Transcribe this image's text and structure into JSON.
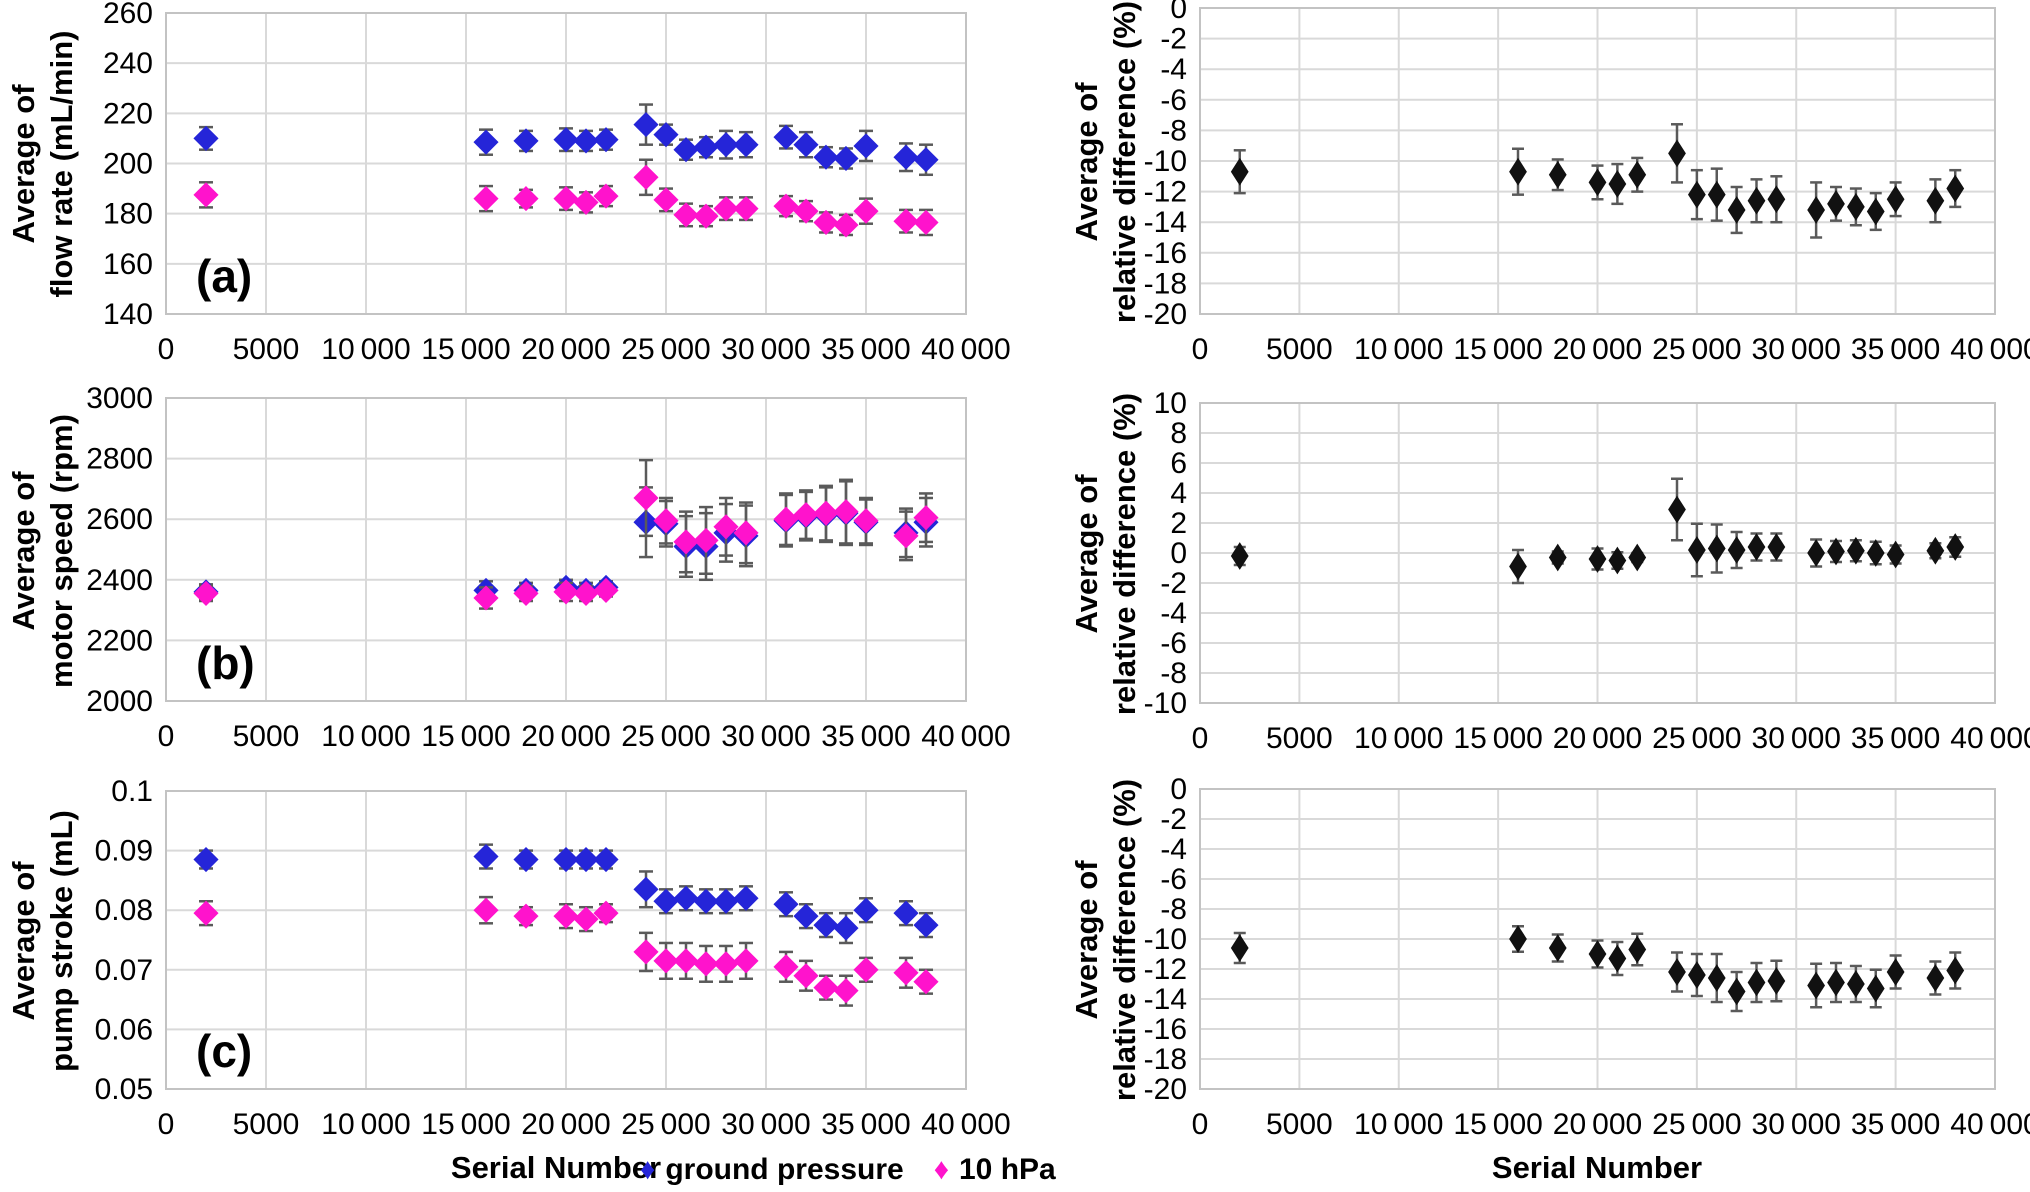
{
  "figure": {
    "x_axis_title": "Serial Number",
    "xticks": [
      0,
      5000,
      10000,
      15000,
      20000,
      25000,
      30000,
      35000,
      40000
    ],
    "xtick_labels": [
      "0",
      "5000",
      "10 000",
      "15 000",
      "20 000",
      "25 000",
      "30 000",
      "35 000",
      "40 000"
    ],
    "colors": {
      "ground_pressure": "#2525d8",
      "ten_hpa": "#ff13cc",
      "relative_diff": "#111111",
      "error_bar": "#5a5a5a",
      "gridline": "#d9d9d9",
      "plot_border": "#c3c3c3"
    }
  },
  "legend": {
    "glyph": "♦",
    "items": [
      {
        "label": "ground pressure",
        "color": "#2525d8"
      },
      {
        "label": "10 hPa",
        "color": "#ff13cc"
      }
    ]
  },
  "chart_data": [
    {
      "id": "flow-rate",
      "type": "scatter",
      "panel_label": "(a)",
      "ylabel_lines": [
        "Average of",
        "flow rate (mL/min)"
      ],
      "xlabel": "Serial Number",
      "xlim": [
        0,
        40000
      ],
      "ylim": [
        140,
        260
      ],
      "ytick_labels": [
        "260",
        "240",
        "220",
        "200",
        "180",
        "160",
        "140"
      ],
      "grid": true,
      "x": [
        2000,
        16000,
        18000,
        20000,
        21000,
        22000,
        24000,
        25000,
        26000,
        27000,
        28000,
        29000,
        31000,
        32000,
        33000,
        34000,
        35000,
        37000,
        38000
      ],
      "series": [
        {
          "name": "ground pressure",
          "color": "#2525d8",
          "values": [
            210,
            208.5,
            209,
            209.5,
            209,
            209.5,
            215.5,
            211.5,
            205.5,
            206.5,
            207.5,
            207.5,
            210.5,
            207.5,
            202.5,
            202,
            207,
            202.5,
            201.5
          ],
          "errors": [
            4.5,
            5,
            4,
            4.5,
            4,
            4,
            8,
            4,
            4,
            4,
            5.5,
            5,
            4.5,
            5,
            4,
            4,
            6,
            5.5,
            6
          ]
        },
        {
          "name": "10 hPa",
          "color": "#ff13cc",
          "values": [
            187.5,
            186,
            186,
            186,
            184.5,
            187,
            194.5,
            185.5,
            179.5,
            179,
            182,
            182,
            183,
            181,
            176.5,
            175.5,
            181,
            177,
            176.5
          ],
          "errors": [
            5,
            5,
            3.5,
            4.5,
            4,
            4,
            7,
            4.5,
            4.5,
            4,
            4.5,
            4.5,
            4,
            4,
            4,
            4,
            5,
            4.5,
            5
          ]
        }
      ]
    },
    {
      "id": "motor-speed",
      "type": "scatter",
      "panel_label": "(b)",
      "ylabel_lines": [
        "Average of",
        "motor speed (rpm)"
      ],
      "xlabel": "Serial Number",
      "xlim": [
        0,
        40000
      ],
      "ylim": [
        2000,
        3000
      ],
      "ytick_labels": [
        "3000",
        "2800",
        "2600",
        "2400",
        "2200",
        "2000"
      ],
      "grid": true,
      "x": [
        2000,
        16000,
        18000,
        20000,
        21000,
        22000,
        24000,
        25000,
        26000,
        27000,
        28000,
        29000,
        31000,
        32000,
        33000,
        34000,
        35000,
        37000,
        38000
      ],
      "series": [
        {
          "name": "ground pressure",
          "color": "#2525d8",
          "values": [
            2360,
            2365,
            2365,
            2375,
            2365,
            2375,
            2590,
            2585,
            2510,
            2510,
            2555,
            2545,
            2595,
            2610,
            2615,
            2620,
            2590,
            2555,
            2590
          ],
          "errors": [
            25,
            30,
            25,
            25,
            25,
            20,
            115,
            75,
            100,
            110,
            95,
            100,
            85,
            80,
            90,
            105,
            75,
            80,
            80
          ]
        },
        {
          "name": "10 hPa",
          "color": "#ff13cc",
          "values": [
            2355,
            2340,
            2355,
            2360,
            2355,
            2365,
            2670,
            2595,
            2525,
            2530,
            2575,
            2555,
            2600,
            2615,
            2620,
            2625,
            2595,
            2545,
            2605
          ],
          "errors": [
            25,
            35,
            25,
            30,
            25,
            20,
            125,
            75,
            100,
            110,
            95,
            100,
            85,
            80,
            90,
            105,
            75,
            80,
            80
          ]
        }
      ]
    },
    {
      "id": "pump-stroke",
      "type": "scatter",
      "panel_label": "(c)",
      "ylabel_lines": [
        "Average of",
        "pump stroke (mL)"
      ],
      "xlabel": "Serial Number",
      "xlim": [
        0,
        40000
      ],
      "ylim": [
        0.05,
        0.1
      ],
      "ytick_labels": [
        "0.1",
        "0.09",
        "0.08",
        "0.07",
        "0.06",
        "0.05"
      ],
      "grid": true,
      "x": [
        2000,
        16000,
        18000,
        20000,
        21000,
        22000,
        24000,
        25000,
        26000,
        27000,
        28000,
        29000,
        31000,
        32000,
        33000,
        34000,
        35000,
        37000,
        38000
      ],
      "series": [
        {
          "name": "ground pressure",
          "color": "#2525d8",
          "values": [
            0.0885,
            0.089,
            0.0885,
            0.0885,
            0.0885,
            0.0885,
            0.0835,
            0.0815,
            0.082,
            0.0815,
            0.0815,
            0.082,
            0.081,
            0.079,
            0.0775,
            0.077,
            0.08,
            0.0795,
            0.0775
          ],
          "errors": [
            0.0015,
            0.002,
            0.0015,
            0.0015,
            0.0015,
            0.0015,
            0.003,
            0.002,
            0.002,
            0.002,
            0.002,
            0.002,
            0.002,
            0.002,
            0.002,
            0.0025,
            0.002,
            0.002,
            0.002
          ]
        },
        {
          "name": "10 hPa",
          "color": "#ff13cc",
          "values": [
            0.0795,
            0.08,
            0.079,
            0.079,
            0.0785,
            0.0795,
            0.073,
            0.0715,
            0.0715,
            0.071,
            0.071,
            0.0715,
            0.0705,
            0.069,
            0.067,
            0.0665,
            0.07,
            0.0695,
            0.068
          ],
          "errors": [
            0.002,
            0.0022,
            0.0015,
            0.002,
            0.002,
            0.0015,
            0.0032,
            0.003,
            0.003,
            0.003,
            0.003,
            0.003,
            0.0025,
            0.0025,
            0.002,
            0.0025,
            0.002,
            0.0025,
            0.002
          ]
        }
      ]
    },
    {
      "id": "flow-rate-relative-difference",
      "type": "scatter",
      "panel_label": "",
      "ylabel_lines": [
        "Average of",
        "relative difference (%)"
      ],
      "xlabel": "Serial Number",
      "xlim": [
        0,
        40000
      ],
      "ylim": [
        -20,
        0
      ],
      "ytick_labels": [
        "0",
        "-2",
        "-4",
        "-6",
        "-8",
        "-10",
        "-12",
        "-14",
        "-16",
        "-18",
        "-20"
      ],
      "grid": true,
      "x": [
        2000,
        16000,
        18000,
        20000,
        21000,
        22000,
        24000,
        25000,
        26000,
        27000,
        28000,
        29000,
        31000,
        32000,
        33000,
        34000,
        35000,
        37000,
        38000
      ],
      "series": [
        {
          "name": "relative difference",
          "color": "#111111",
          "values": [
            -10.7,
            -10.7,
            -10.9,
            -11.4,
            -11.5,
            -10.9,
            -9.5,
            -12.2,
            -12.2,
            -13.2,
            -12.6,
            -12.5,
            -13.2,
            -12.8,
            -13.0,
            -13.3,
            -12.5,
            -12.6,
            -11.8
          ],
          "errors": [
            1.4,
            1.5,
            1.0,
            1.1,
            1.3,
            1.1,
            1.9,
            1.6,
            1.7,
            1.5,
            1.4,
            1.5,
            1.8,
            1.1,
            1.2,
            1.2,
            1.1,
            1.4,
            1.2
          ]
        }
      ]
    },
    {
      "id": "motor-speed-relative-difference",
      "type": "scatter",
      "panel_label": "",
      "ylabel_lines": [
        "Average of",
        "relative difference (%)"
      ],
      "xlabel": "Serial Number",
      "xlim": [
        0,
        40000
      ],
      "ylim": [
        -10,
        10
      ],
      "ytick_labels": [
        "10",
        "8",
        "6",
        "4",
        "2",
        "0",
        "-2",
        "-4",
        "-6",
        "-8",
        "-10"
      ],
      "grid": true,
      "x": [
        2000,
        16000,
        18000,
        20000,
        21000,
        22000,
        24000,
        25000,
        26000,
        27000,
        28000,
        29000,
        31000,
        32000,
        33000,
        34000,
        35000,
        37000,
        38000
      ],
      "series": [
        {
          "name": "relative difference",
          "color": "#111111",
          "values": [
            -0.2,
            -0.9,
            -0.3,
            -0.4,
            -0.5,
            -0.3,
            2.9,
            0.2,
            0.3,
            0.2,
            0.4,
            0.4,
            0.0,
            0.1,
            0.15,
            0.0,
            -0.1,
            0.15,
            0.4
          ],
          "errors": [
            0.6,
            1.1,
            0.4,
            0.7,
            0.55,
            0.3,
            2.05,
            1.75,
            1.6,
            1.2,
            0.9,
            0.9,
            0.9,
            0.7,
            0.7,
            0.75,
            0.6,
            0.5,
            0.65
          ]
        }
      ]
    },
    {
      "id": "pump-stroke-relative-difference",
      "type": "scatter",
      "panel_label": "",
      "ylabel_lines": [
        "Average of",
        "relative difference (%)"
      ],
      "xlabel": "Serial Number",
      "xlim": [
        0,
        40000
      ],
      "ylim": [
        -20,
        0
      ],
      "ytick_labels": [
        "0",
        "-2",
        "-4",
        "-6",
        "-8",
        "-10",
        "-12",
        "-14",
        "-16",
        "-18",
        "-20"
      ],
      "grid": true,
      "x": [
        2000,
        16000,
        18000,
        20000,
        21000,
        22000,
        24000,
        25000,
        26000,
        27000,
        28000,
        29000,
        31000,
        32000,
        33000,
        34000,
        35000,
        37000,
        38000
      ],
      "series": [
        {
          "name": "relative difference",
          "color": "#111111",
          "values": [
            -10.6,
            -10.0,
            -10.6,
            -11.0,
            -11.3,
            -10.7,
            -12.2,
            -12.4,
            -12.6,
            -13.5,
            -12.9,
            -12.8,
            -13.1,
            -12.9,
            -13.0,
            -13.3,
            -12.2,
            -12.6,
            -12.1
          ],
          "errors": [
            1.0,
            0.85,
            0.9,
            0.9,
            1.1,
            1.05,
            1.3,
            1.4,
            1.6,
            1.3,
            1.3,
            1.35,
            1.45,
            1.3,
            1.2,
            1.25,
            1.1,
            1.1,
            1.2
          ]
        }
      ]
    }
  ]
}
